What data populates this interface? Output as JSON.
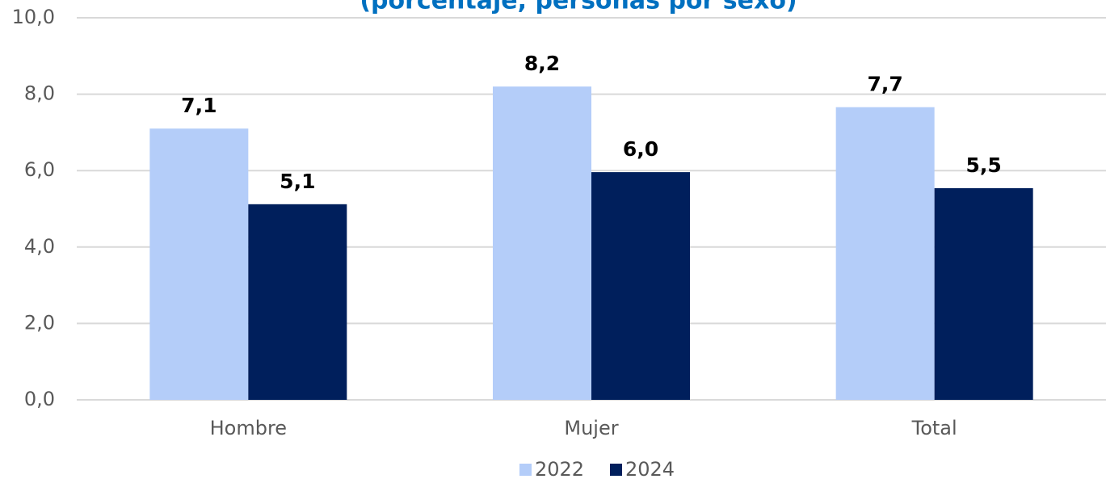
{
  "chart_data": {
    "type": "bar",
    "title": "(porcentaje, personas por sexo)",
    "categories": [
      "Hombre",
      "Mujer",
      "Total"
    ],
    "series": [
      {
        "name": "2022",
        "color": "#b4cdf9",
        "values": [
          7.1,
          8.2,
          7.66
        ],
        "value_labels": [
          "7,1",
          "8,2",
          "7,7"
        ]
      },
      {
        "name": "2024",
        "color": "#001f5c",
        "values": [
          5.12,
          5.96,
          5.54
        ],
        "value_labels": [
          "5,1",
          "6,0",
          "5,5"
        ]
      }
    ],
    "ylim": [
      0,
      10
    ],
    "yticks": [
      {
        "value": 0,
        "label": "0,0"
      },
      {
        "value": 2,
        "label": "2,0"
      },
      {
        "value": 4,
        "label": "4,0"
      },
      {
        "value": 6,
        "label": "6,0"
      },
      {
        "value": 8,
        "label": "8,0"
      },
      {
        "value": 10,
        "label": "10,0"
      }
    ],
    "grid": true,
    "legend": "bottom"
  }
}
